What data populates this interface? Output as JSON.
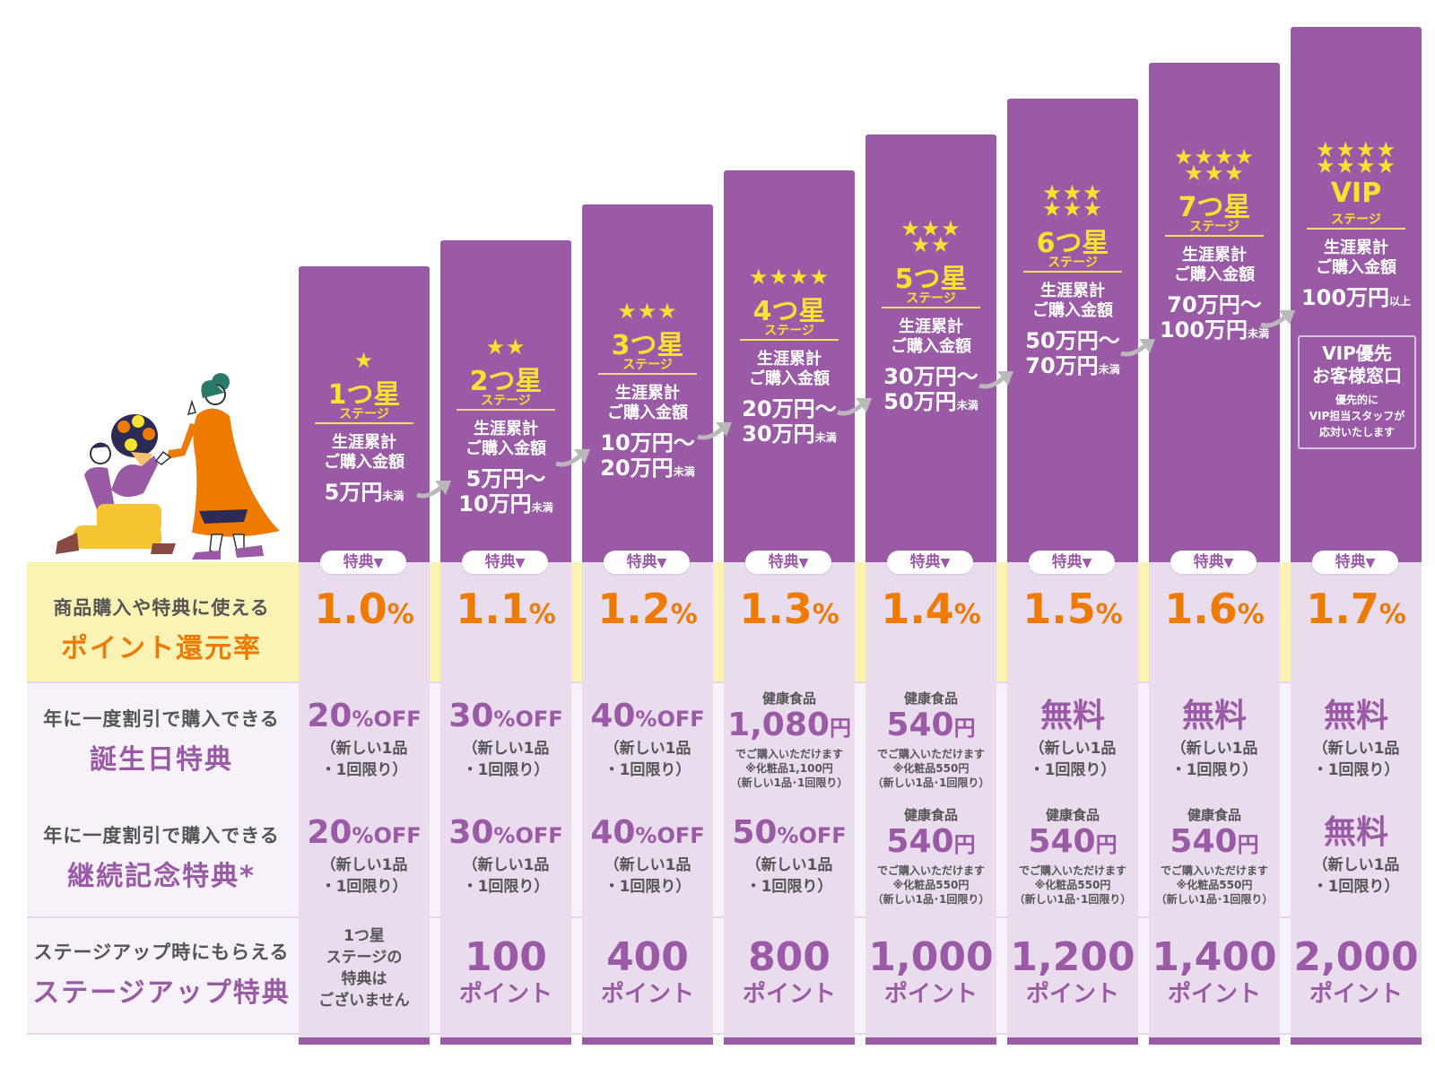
{
  "colors": {
    "purple": "#9a5aa6",
    "orange": "#ee7a00",
    "yellow": "#f5e232",
    "cream": "#fbf3b4",
    "lilac": "#e8dced"
  },
  "row_labels": {
    "points": {
      "sub": "商品購入や特典に使える",
      "main": "ポイント還元率"
    },
    "birthday": {
      "sub": "年に一度割引で購入できる",
      "main": "誕生日特典"
    },
    "anniversary": {
      "sub": "年に一度割引で購入できる",
      "main": "継続記念特典*"
    },
    "stageup": {
      "sub": "ステージアップ時にもらえる",
      "main": "ステージアップ特典"
    }
  },
  "common": {
    "stage_sub": "ステージ",
    "cum_label": "生涯累計\nご購入金額",
    "tokuten_label": "特典",
    "tokuten_icon": "▼",
    "pct_unit": "%",
    "point_unit": "ポイント"
  },
  "stages": [
    {
      "stars": "★",
      "name": "1つ星",
      "amount": "5万円",
      "amount_suffix": "未満",
      "amount2": "",
      "amount2_suffix": "",
      "rate": "1.0",
      "birthday": {
        "value": "20",
        "unit": "%OFF",
        "note": "（新しい1品\n・1回限り）"
      },
      "anniversary": {
        "value": "20",
        "unit": "%OFF",
        "note": "（新しい1品\n・1回限り）"
      },
      "stageup": {
        "none_text": "1つ星\nステージの\n特典は\nございません"
      }
    },
    {
      "stars": "★★",
      "name": "2つ星",
      "amount": "5万円～",
      "amount_suffix": "",
      "amount2": "10万円",
      "amount2_suffix": "未満",
      "rate": "1.1",
      "birthday": {
        "value": "30",
        "unit": "%OFF",
        "note": "（新しい1品\n・1回限り）"
      },
      "anniversary": {
        "value": "30",
        "unit": "%OFF",
        "note": "（新しい1品\n・1回限り）"
      },
      "stageup": {
        "points": "100"
      }
    },
    {
      "stars": "★★★",
      "name": "3つ星",
      "amount": "10万円～",
      "amount_suffix": "",
      "amount2": "20万円",
      "amount2_suffix": "未満",
      "rate": "1.2",
      "birthday": {
        "value": "40",
        "unit": "%OFF",
        "note": "（新しい1品\n・1回限り）"
      },
      "anniversary": {
        "value": "40",
        "unit": "%OFF",
        "note": "（新しい1品\n・1回限り）"
      },
      "stageup": {
        "points": "400"
      }
    },
    {
      "stars": "★★★★",
      "name": "4つ星",
      "amount": "20万円～",
      "amount_suffix": "",
      "amount2": "30万円",
      "amount2_suffix": "未満",
      "rate": "1.3",
      "birthday": {
        "category": "健康食品",
        "value": "1,080",
        "unit": "円",
        "tiny": "でご購入いただけます\n※化粧品1,100円\n（新しい1品･1回限り）"
      },
      "anniversary": {
        "value": "50",
        "unit": "%OFF",
        "note": "（新しい1品\n・1回限り）"
      },
      "stageup": {
        "points": "800"
      }
    },
    {
      "stars": "★★★\n★★",
      "name": "5つ星",
      "amount": "30万円～",
      "amount_suffix": "",
      "amount2": "50万円",
      "amount2_suffix": "未満",
      "rate": "1.4",
      "birthday": {
        "category": "健康食品",
        "value": "540",
        "unit": "円",
        "tiny": "でご購入いただけます\n※化粧品550円\n（新しい1品･1回限り）"
      },
      "anniversary": {
        "category": "健康食品",
        "value": "540",
        "unit": "円",
        "tiny": "でご購入いただけます\n※化粧品550円\n（新しい1品･1回限り）"
      },
      "stageup": {
        "points": "1,000"
      }
    },
    {
      "stars": "★★★\n★★★",
      "name": "6つ星",
      "amount": "50万円～",
      "amount_suffix": "",
      "amount2": "70万円",
      "amount2_suffix": "未満",
      "rate": "1.5",
      "birthday": {
        "value": "無料",
        "unit": "",
        "note": "（新しい1品\n・1回限り）"
      },
      "anniversary": {
        "category": "健康食品",
        "value": "540",
        "unit": "円",
        "tiny": "でご購入いただけます\n※化粧品550円\n（新しい1品･1回限り）"
      },
      "stageup": {
        "points": "1,200"
      }
    },
    {
      "stars": "★★★★\n★★★",
      "name": "7つ星",
      "amount": "70万円～",
      "amount_suffix": "",
      "amount2": "100万円",
      "amount2_suffix": "未満",
      "rate": "1.6",
      "birthday": {
        "value": "無料",
        "unit": "",
        "note": "（新しい1品\n・1回限り）"
      },
      "anniversary": {
        "category": "健康食品",
        "value": "540",
        "unit": "円",
        "tiny": "でご購入いただけます\n※化粧品550円\n（新しい1品･1回限り）"
      },
      "stageup": {
        "points": "1,400"
      }
    },
    {
      "stars": "★★★★\n★★★★",
      "name": "VIP",
      "amount": "100万円",
      "amount_suffix": "以上",
      "amount2": "",
      "amount2_suffix": "",
      "rate": "1.7",
      "vip_box": {
        "title": "VIP優先\nお客様窓口",
        "desc": "優先的に\nVIP担当スタッフが\n応対いたします"
      },
      "birthday": {
        "value": "無料",
        "unit": "",
        "note": "（新しい1品\n・1回限り）"
      },
      "anniversary": {
        "value": "無料",
        "unit": "",
        "note": "（新しい1品\n・1回限り）"
      },
      "stageup": {
        "points": "2,000"
      }
    }
  ]
}
